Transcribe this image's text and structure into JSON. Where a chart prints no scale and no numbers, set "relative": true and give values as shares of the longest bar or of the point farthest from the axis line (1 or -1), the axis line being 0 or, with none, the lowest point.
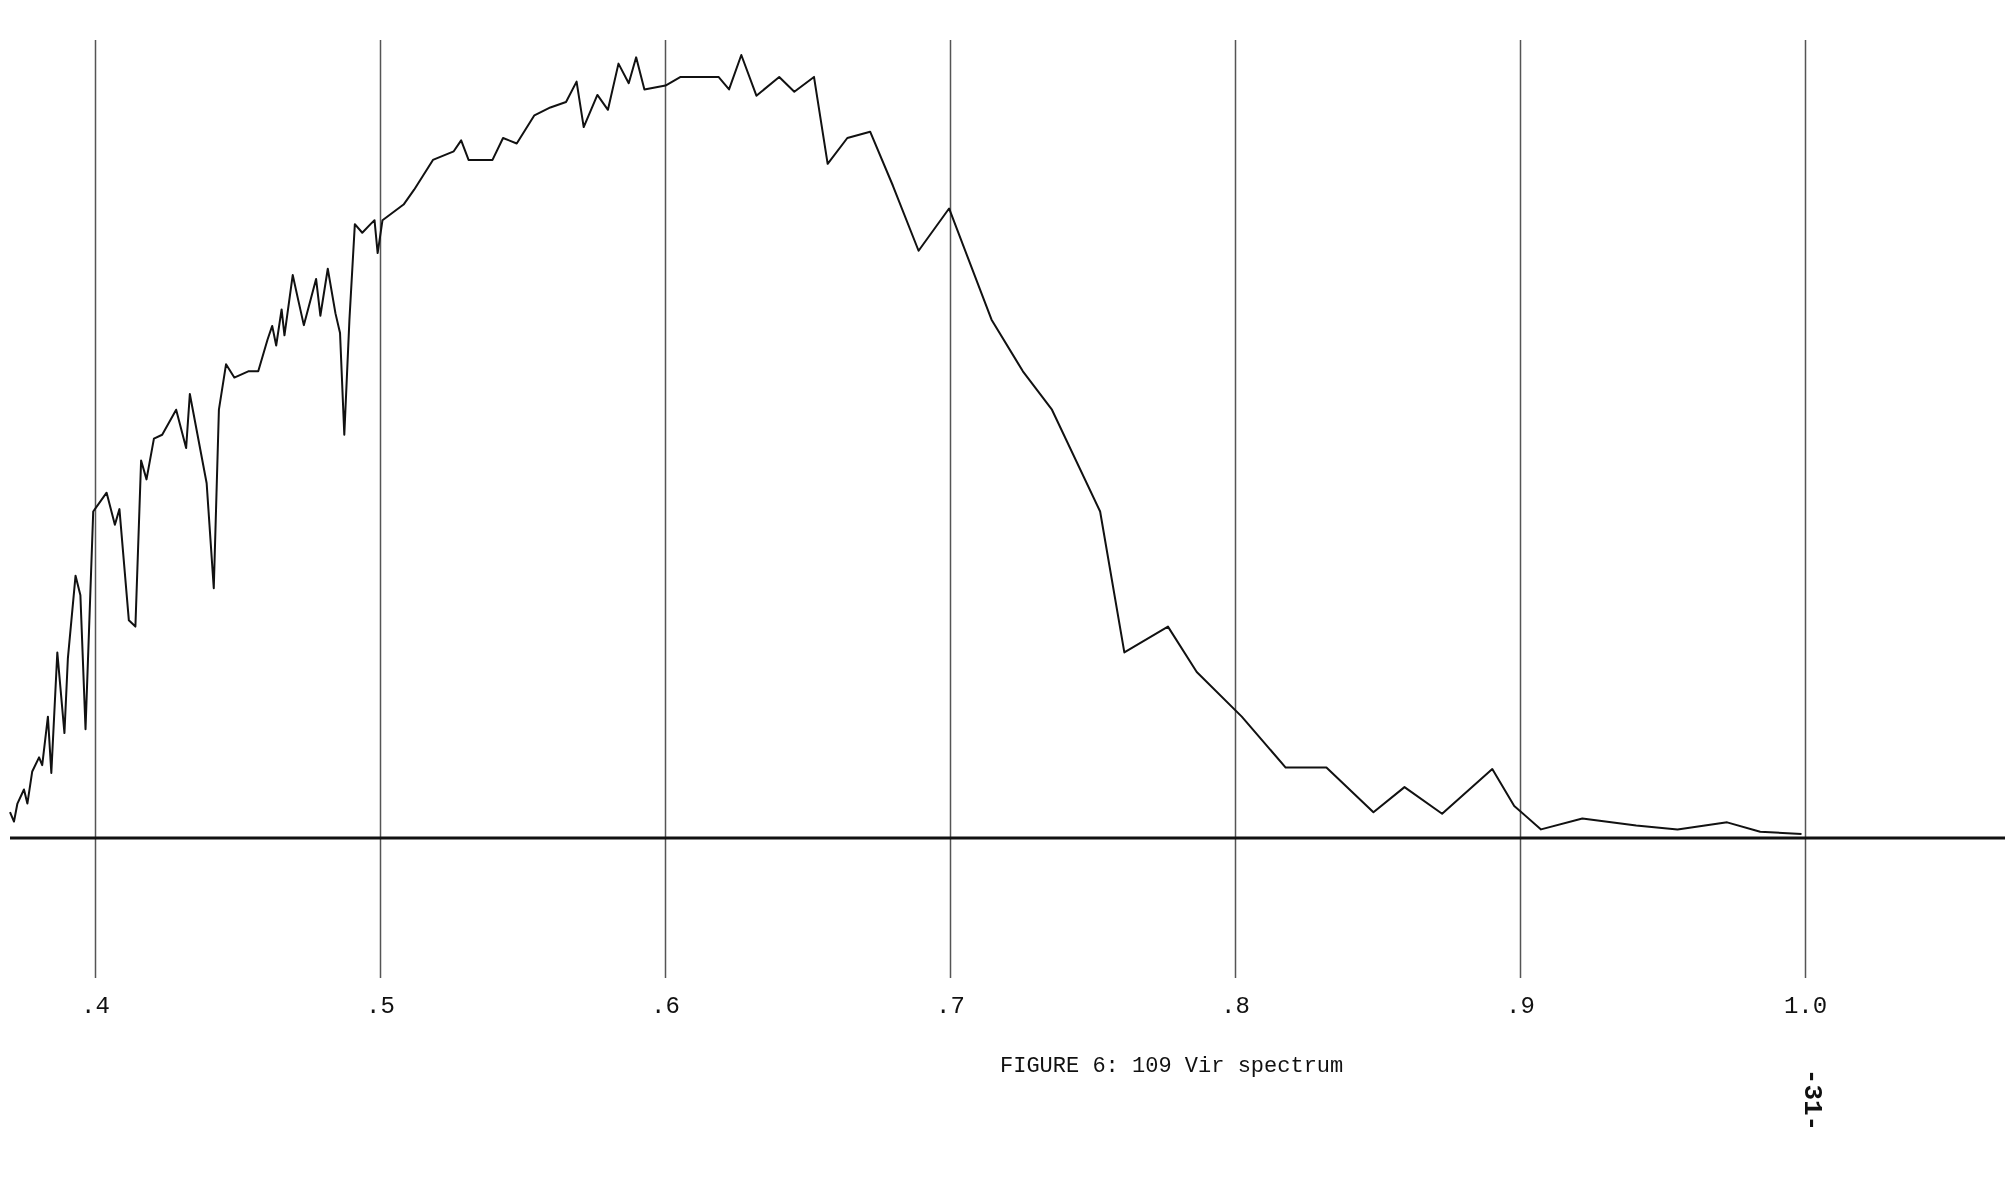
{
  "chart_data": {
    "type": "line",
    "title": "FIGURE 6: 109 Vir spectrum",
    "annotations": [
      "-31-"
    ],
    "relative": true,
    "grid": "x",
    "marker": "none",
    "line_style": "solid",
    "xlim": [
      0.37,
      1.07
    ],
    "xticks": [
      {
        "value": 0.4,
        "label": ".4"
      },
      {
        "value": 0.5,
        "label": ".5"
      },
      {
        "value": 0.6,
        "label": ".6"
      },
      {
        "value": 0.7,
        "label": ".7"
      },
      {
        "value": 0.8,
        "label": ".8"
      },
      {
        "value": 0.9,
        "label": ".9"
      },
      {
        "value": 1.0,
        "label": "1.0"
      }
    ],
    "series": [
      {
        "color": "#111111",
        "x": [
          0.37,
          0.3714,
          0.3726,
          0.3749,
          0.3761,
          0.3778,
          0.3802,
          0.3813,
          0.3833,
          0.3845,
          0.3866,
          0.3891,
          0.3903,
          0.393,
          0.3947,
          0.3965,
          0.3992,
          0.4039,
          0.4068,
          0.4084,
          0.4117,
          0.414,
          0.416,
          0.4179,
          0.4205,
          0.4234,
          0.4283,
          0.4318,
          0.4331,
          0.439,
          0.4415,
          0.4433,
          0.4458,
          0.4487,
          0.4536,
          0.4571,
          0.4604,
          0.462,
          0.4634,
          0.4653,
          0.4663,
          0.4692,
          0.4712,
          0.4731,
          0.4774,
          0.4789,
          0.4815,
          0.4842,
          0.4858,
          0.4873,
          0.4891,
          0.491,
          0.4936,
          0.4965,
          0.4979,
          0.499,
          0.5007,
          0.5081,
          0.5118,
          0.5184,
          0.5257,
          0.5283,
          0.5309,
          0.5393,
          0.543,
          0.5478,
          0.554,
          0.5596,
          0.5651,
          0.5688,
          0.5713,
          0.5761,
          0.5798,
          0.5835,
          0.5871,
          0.5897,
          0.5926,
          0.6,
          0.6053,
          0.6186,
          0.6223,
          0.6266,
          0.6319,
          0.6399,
          0.6452,
          0.6521,
          0.6569,
          0.6638,
          0.6718,
          0.6798,
          0.6888,
          0.6995,
          0.7144,
          0.7254,
          0.7356,
          0.7525,
          0.761,
          0.7763,
          0.7864,
          0.8022,
          0.8176,
          0.8319,
          0.8484,
          0.8593,
          0.8725,
          0.8901,
          0.8978,
          0.9072,
          0.9217,
          0.9406,
          0.9551,
          0.9725,
          0.9841,
          0.9986
        ],
        "values": [
          0.033,
          0.021,
          0.044,
          0.062,
          0.044,
          0.085,
          0.103,
          0.093,
          0.155,
          0.083,
          0.237,
          0.134,
          0.229,
          0.335,
          0.31,
          0.139,
          0.417,
          0.441,
          0.4,
          0.42,
          0.278,
          0.27,
          0.482,
          0.458,
          0.51,
          0.515,
          0.547,
          0.498,
          0.567,
          0.453,
          0.319,
          0.547,
          0.605,
          0.588,
          0.596,
          0.596,
          0.637,
          0.654,
          0.629,
          0.675,
          0.642,
          0.719,
          0.686,
          0.655,
          0.714,
          0.667,
          0.727,
          0.67,
          0.645,
          0.515,
          0.662,
          0.784,
          0.773,
          0.784,
          0.789,
          0.747,
          0.789,
          0.809,
          0.828,
          0.866,
          0.877,
          0.891,
          0.866,
          0.866,
          0.894,
          0.887,
          0.923,
          0.933,
          0.94,
          0.966,
          0.908,
          0.949,
          0.93,
          0.989,
          0.964,
          0.997,
          0.956,
          0.961,
          0.972,
          0.972,
          0.956,
          1,
          0.948,
          0.972,
          0.953,
          0.972,
          0.861,
          0.894,
          0.902,
          0.833,
          0.75,
          0.804,
          0.662,
          0.596,
          0.547,
          0.417,
          0.237,
          0.27,
          0.212,
          0.155,
          0.09,
          0.09,
          0.033,
          0.065,
          0.031,
          0.088,
          0.041,
          0.011,
          0.025,
          0.016,
          0.011,
          0.02,
          0.008,
          0.005
        ]
      }
    ]
  }
}
